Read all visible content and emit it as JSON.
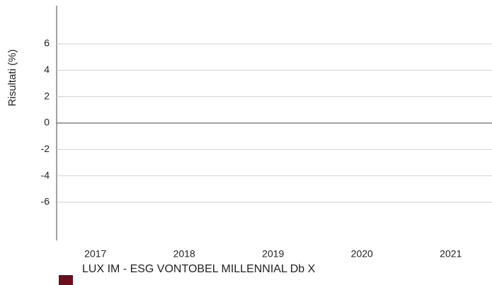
{
  "chart_data": {
    "type": "bar",
    "y_label": "Risultati (%)",
    "categories": [
      "2017",
      "2018",
      "2019",
      "2020",
      "2021"
    ],
    "series": [
      {
        "name": "LUX IM - ESG VONTOBEL MILLENNIAL Db X",
        "color": "#6b0f1e",
        "values": [
          null,
          null,
          null,
          null,
          null
        ]
      }
    ],
    "ylim": [
      -9,
      9
    ],
    "yticks": [
      6,
      4,
      2,
      0,
      -2,
      -4,
      -6
    ],
    "grid": true
  }
}
